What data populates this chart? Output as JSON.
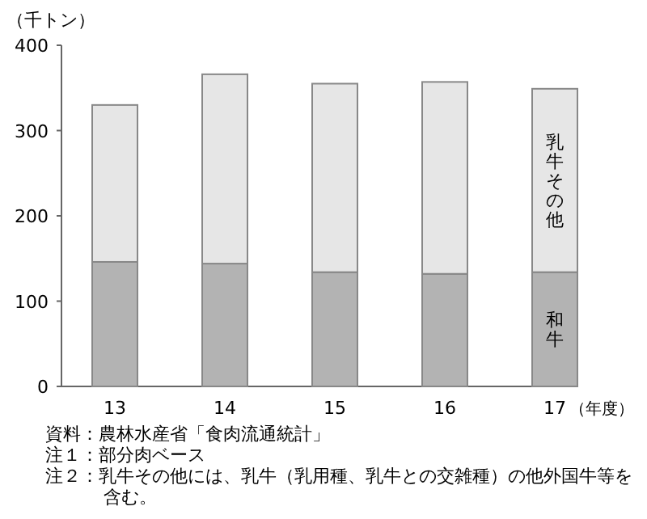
{
  "chart_data": {
    "type": "bar",
    "stacked": true,
    "categories": [
      "13",
      "14",
      "15",
      "16",
      "17"
    ],
    "series": [
      {
        "name": "和牛",
        "color": "#b3b3b3",
        "values": [
          146,
          144,
          134,
          132,
          134
        ]
      },
      {
        "name": "乳牛その他",
        "color": "#e6e6e6",
        "values": [
          184,
          222,
          221,
          225,
          215
        ]
      }
    ],
    "xlabel": "（年度）",
    "ylabel": "（千トン）",
    "ylim": [
      0,
      400
    ],
    "yticks": [
      0,
      100,
      200,
      300,
      400
    ],
    "grid": false,
    "annotations": [
      "資料：農林水産省「食肉流通統計」",
      "注１：部分肉ベース",
      "注２：乳牛その他には、乳牛（乳用種、乳牛との交雑種）の他外国牛等を含む。"
    ]
  }
}
